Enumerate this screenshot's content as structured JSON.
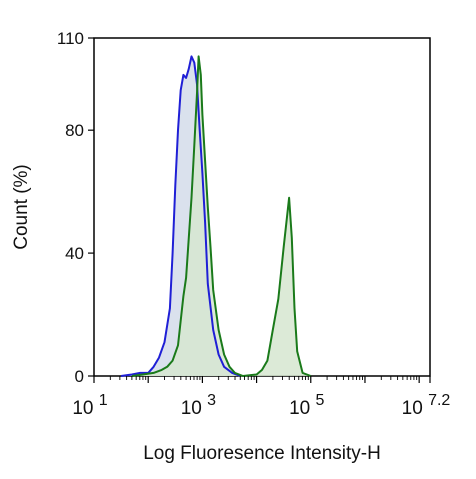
{
  "chart_data": {
    "type": "area",
    "title": "",
    "xlabel": "Log Fluoresence Intensity-H",
    "ylabel": "Count  (%)",
    "x_scale": "log",
    "xlim_exponent": [
      1,
      7.2
    ],
    "ylim": [
      0,
      110
    ],
    "y_ticks": [
      {
        "value": 0,
        "label": "0"
      },
      {
        "value": 40,
        "label": "40"
      },
      {
        "value": 80,
        "label": "80"
      },
      {
        "value": 110,
        "label": "110"
      }
    ],
    "x_ticks": [
      {
        "exponent": 1,
        "base": "10",
        "sup": "1"
      },
      {
        "exponent": 3,
        "base": "10",
        "sup": "3"
      },
      {
        "exponent": 5,
        "base": "10",
        "sup": "5"
      },
      {
        "exponent": 7.2,
        "base": "10",
        "sup": "7.2"
      }
    ],
    "series": [
      {
        "color": "#1f1fd6",
        "fill": "#d3dcea",
        "points": [
          [
            1.5,
            0
          ],
          [
            1.7,
            0.5
          ],
          [
            1.85,
            1
          ],
          [
            2.0,
            1
          ],
          [
            2.1,
            3
          ],
          [
            2.2,
            6
          ],
          [
            2.3,
            11
          ],
          [
            2.4,
            22
          ],
          [
            2.45,
            40
          ],
          [
            2.5,
            62
          ],
          [
            2.55,
            80
          ],
          [
            2.6,
            93
          ],
          [
            2.65,
            98
          ],
          [
            2.7,
            97
          ],
          [
            2.75,
            100
          ],
          [
            2.8,
            104
          ],
          [
            2.85,
            102
          ],
          [
            2.9,
            95
          ],
          [
            2.95,
            80
          ],
          [
            3.0,
            66
          ],
          [
            3.05,
            50
          ],
          [
            3.1,
            30
          ],
          [
            3.2,
            15
          ],
          [
            3.3,
            7
          ],
          [
            3.4,
            3
          ],
          [
            3.55,
            1
          ],
          [
            3.7,
            0
          ]
        ]
      },
      {
        "color": "#1a7a1a",
        "fill": "#d6e6d0",
        "points": [
          [
            1.7,
            0
          ],
          [
            1.9,
            0.5
          ],
          [
            2.1,
            1
          ],
          [
            2.25,
            2
          ],
          [
            2.35,
            3
          ],
          [
            2.45,
            5
          ],
          [
            2.55,
            10
          ],
          [
            2.6,
            18
          ],
          [
            2.65,
            26
          ],
          [
            2.7,
            32
          ],
          [
            2.75,
            45
          ],
          [
            2.8,
            58
          ],
          [
            2.85,
            75
          ],
          [
            2.9,
            92
          ],
          [
            2.93,
            104
          ],
          [
            2.97,
            98
          ],
          [
            3.0,
            85
          ],
          [
            3.05,
            70
          ],
          [
            3.1,
            55
          ],
          [
            3.15,
            42
          ],
          [
            3.2,
            28
          ],
          [
            3.3,
            15
          ],
          [
            3.4,
            7
          ],
          [
            3.5,
            3
          ],
          [
            3.6,
            1
          ],
          [
            3.75,
            0
          ],
          [
            4.0,
            0.5
          ],
          [
            4.1,
            2
          ],
          [
            4.2,
            5
          ],
          [
            4.25,
            10
          ],
          [
            4.3,
            15
          ],
          [
            4.4,
            25
          ],
          [
            4.5,
            42
          ],
          [
            4.55,
            50
          ],
          [
            4.6,
            58
          ],
          [
            4.65,
            45
          ],
          [
            4.7,
            22
          ],
          [
            4.75,
            8
          ],
          [
            4.85,
            1
          ],
          [
            5.0,
            0
          ]
        ]
      }
    ]
  }
}
